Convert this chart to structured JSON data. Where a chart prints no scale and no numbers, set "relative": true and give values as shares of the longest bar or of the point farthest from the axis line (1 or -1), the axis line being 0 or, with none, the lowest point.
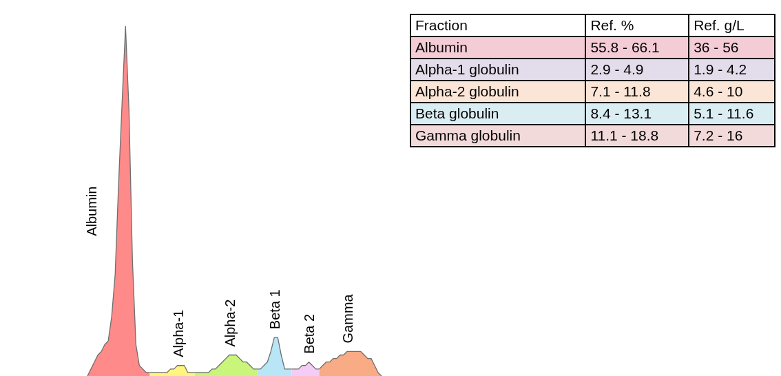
{
  "chart_data": [
    {
      "type": "area",
      "relative": true,
      "categories": [
        null,
        null,
        null,
        null,
        null,
        null,
        null,
        null,
        null,
        null,
        null,
        null,
        null,
        null,
        null,
        null,
        null,
        null,
        null,
        null,
        null,
        null,
        null,
        null,
        null,
        null,
        null,
        null,
        null,
        null,
        null,
        null,
        null,
        null,
        null,
        null,
        null,
        null,
        null,
        null,
        null,
        null,
        null,
        null,
        null,
        null,
        null,
        null,
        null,
        null,
        null,
        null,
        null,
        null,
        null,
        null,
        null,
        null,
        null,
        null,
        null,
        null,
        null,
        null,
        null,
        null,
        null,
        null,
        null,
        null,
        null,
        null,
        null,
        null,
        null,
        null,
        null,
        null,
        null,
        null,
        null,
        null,
        null,
        null,
        null,
        null
      ],
      "series": [
        {
          "name": "Albumin",
          "color": "#ff8a8a",
          "values": [
            0,
            0.02,
            0.04,
            0.06,
            0.07,
            0.09,
            0.1,
            0.17,
            0.29,
            0.55,
            0.78,
            1,
            0.76,
            0.33,
            0.09,
            0.03,
            0.02,
            0.01,
            0.01,
            null,
            null,
            null,
            null,
            null,
            null,
            null,
            null,
            null,
            null,
            null,
            null,
            null,
            null,
            null,
            null,
            null,
            null,
            null,
            null,
            null,
            null,
            null,
            null,
            null,
            null,
            null,
            null,
            null,
            null,
            null,
            null,
            null,
            null,
            null,
            null,
            null,
            null,
            null,
            null,
            null,
            null,
            null,
            null,
            null,
            null,
            null,
            null,
            null,
            null,
            null,
            null,
            null,
            null,
            null,
            null,
            null,
            null,
            null,
            null,
            null,
            null,
            null,
            null,
            null,
            null,
            null
          ]
        },
        {
          "name": "Alpha-1",
          "color": "#fff57f",
          "values": [
            null,
            null,
            null,
            null,
            null,
            null,
            null,
            null,
            null,
            null,
            null,
            null,
            null,
            null,
            null,
            null,
            null,
            null,
            0.01,
            0.01,
            0.01,
            0.01,
            0.01,
            0.01,
            0.02,
            0.02,
            0.03,
            0.03,
            0.03,
            0.01,
            0.01,
            0.01,
            null,
            null,
            null,
            null,
            null,
            null,
            null,
            null,
            null,
            null,
            null,
            null,
            null,
            null,
            null,
            null,
            null,
            null,
            null,
            null,
            null,
            null,
            null,
            null,
            null,
            null,
            null,
            null,
            null,
            null,
            null,
            null,
            null,
            null,
            null,
            null,
            null,
            null,
            null,
            null,
            null,
            null,
            null,
            null,
            null,
            null,
            null,
            null,
            null,
            null,
            null,
            null,
            null,
            null
          ]
        },
        {
          "name": "Alpha-2",
          "color": "#c8f57a",
          "values": [
            null,
            null,
            null,
            null,
            null,
            null,
            null,
            null,
            null,
            null,
            null,
            null,
            null,
            null,
            null,
            null,
            null,
            null,
            null,
            null,
            null,
            null,
            null,
            null,
            null,
            null,
            null,
            null,
            null,
            null,
            null,
            0.01,
            0.01,
            0.01,
            0.01,
            0.01,
            0.02,
            0.02,
            0.03,
            0.04,
            0.05,
            0.06,
            0.06,
            0.06,
            0.05,
            0.04,
            0.04,
            0.03,
            0.02,
            0.02,
            null,
            null,
            null,
            null,
            null,
            null,
            null,
            null,
            null,
            null,
            null,
            null,
            null,
            null,
            null,
            null,
            null,
            null,
            null,
            null,
            null,
            null,
            null,
            null,
            null,
            null,
            null,
            null,
            null,
            null,
            null,
            null,
            null,
            null,
            null,
            null
          ]
        },
        {
          "name": "Beta 1",
          "color": "#b8e6f7",
          "values": [
            null,
            null,
            null,
            null,
            null,
            null,
            null,
            null,
            null,
            null,
            null,
            null,
            null,
            null,
            null,
            null,
            null,
            null,
            null,
            null,
            null,
            null,
            null,
            null,
            null,
            null,
            null,
            null,
            null,
            null,
            null,
            null,
            null,
            null,
            null,
            null,
            null,
            null,
            null,
            null,
            null,
            null,
            null,
            null,
            null,
            null,
            null,
            null,
            null,
            0.02,
            0.02,
            0.03,
            0.04,
            0.07,
            0.11,
            0.11,
            0.06,
            0.02,
            0.02,
            0.02,
            null,
            null,
            null,
            null,
            null,
            null,
            null,
            null,
            null,
            null,
            null,
            null,
            null,
            null,
            null,
            null,
            null,
            null,
            null,
            null,
            null,
            null,
            null,
            null,
            null,
            null
          ]
        },
        {
          "name": "Beta 2",
          "color": "#f5ccf5",
          "values": [
            null,
            null,
            null,
            null,
            null,
            null,
            null,
            null,
            null,
            null,
            null,
            null,
            null,
            null,
            null,
            null,
            null,
            null,
            null,
            null,
            null,
            null,
            null,
            null,
            null,
            null,
            null,
            null,
            null,
            null,
            null,
            null,
            null,
            null,
            null,
            null,
            null,
            null,
            null,
            null,
            null,
            null,
            null,
            null,
            null,
            null,
            null,
            null,
            null,
            null,
            null,
            null,
            null,
            null,
            null,
            null,
            null,
            null,
            null,
            0.02,
            0.02,
            0.02,
            0.03,
            0.03,
            0.04,
            0.03,
            0.02,
            0.02,
            null,
            null,
            null,
            null,
            null,
            null,
            null,
            null,
            null,
            null,
            null,
            null,
            null,
            null,
            null,
            null,
            null,
            null
          ]
        },
        {
          "name": "Gamma",
          "color": "#f8ab84",
          "values": [
            null,
            null,
            null,
            null,
            null,
            null,
            null,
            null,
            null,
            null,
            null,
            null,
            null,
            null,
            null,
            null,
            null,
            null,
            null,
            null,
            null,
            null,
            null,
            null,
            null,
            null,
            null,
            null,
            null,
            null,
            null,
            null,
            null,
            null,
            null,
            null,
            null,
            null,
            null,
            null,
            null,
            null,
            null,
            null,
            null,
            null,
            null,
            null,
            null,
            null,
            null,
            null,
            null,
            null,
            null,
            null,
            null,
            null,
            null,
            null,
            null,
            null,
            null,
            null,
            null,
            null,
            null,
            0.02,
            0.03,
            0.04,
            0.04,
            0.05,
            0.05,
            0.06,
            0.06,
            0.07,
            0.07,
            0.07,
            0.07,
            0.07,
            0.06,
            0.05,
            0.05,
            0.03,
            0.01,
            0
          ]
        }
      ]
    },
    {
      "type": "other",
      "annotations": [
        "Fraction",
        "Ref. %",
        "Ref. g/L",
        "Albumin",
        "55.8 - 66.1",
        "36 - 56",
        "Alpha-1 globulin",
        "2.9 - 4.9",
        "1.9 - 4.2",
        "Alpha-2 globulin",
        "7.1 - 11.8",
        "4.6 - 10",
        "Beta globulin",
        "8.4 - 13.1",
        "5.1 - 11.6",
        "Gamma globulin",
        "11.1 - 18.8",
        "7.2 - 16"
      ],
      "colors": [
        "#ffffff",
        "#f4ccd6",
        "#e3dcea",
        "#fbe5d6",
        "#daedf3",
        "#f2d9da"
      ]
    }
  ]
}
